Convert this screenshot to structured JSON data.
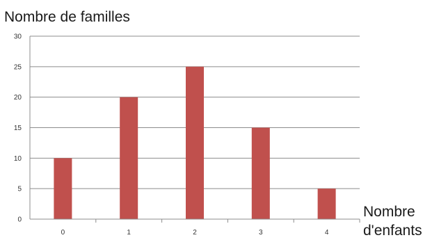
{
  "chart_data": {
    "type": "bar",
    "ylabel": "Nombre de familles",
    "xlabel_line1": "Nombre",
    "xlabel_line2": "d'enfants",
    "categories": [
      "0",
      "1",
      "2",
      "3",
      "4"
    ],
    "values": [
      10,
      20,
      25,
      15,
      5
    ],
    "ylim": [
      0,
      30
    ],
    "yticks": [
      "0",
      "5",
      "10",
      "15",
      "20",
      "25",
      "30"
    ],
    "grid": true,
    "bar_color": "#c0504d",
    "grid_color": "#8c8c8c"
  }
}
